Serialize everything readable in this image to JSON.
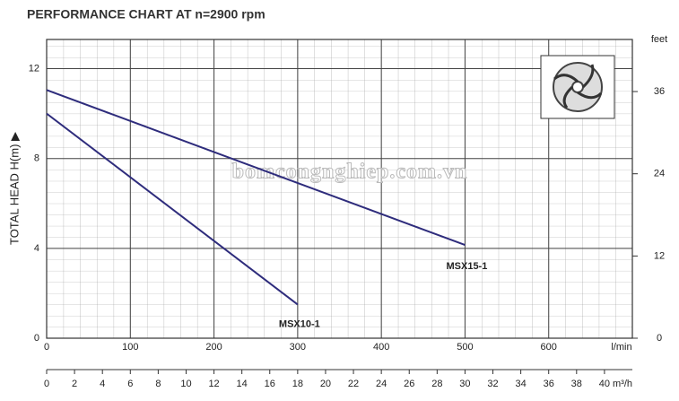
{
  "chart_data": {
    "type": "line",
    "title": "PERFORMANCE CHART AT n=2900 rpm",
    "y_label": "TOTAL HEAD H(m) ▶",
    "x_label": "l/min",
    "x2_label": "m³/h",
    "y2_label": "feet",
    "watermark": "bomcongnghiep.com.vn",
    "xlim": [
      0,
      700
    ],
    "xticks": [
      0,
      100,
      200,
      300,
      400,
      500,
      600
    ],
    "x2lim": [
      0,
      42
    ],
    "x2ticks": [
      0,
      2,
      4,
      6,
      8,
      10,
      12,
      14,
      16,
      18,
      20,
      22,
      24,
      26,
      28,
      30,
      32,
      34,
      36,
      38,
      40
    ],
    "ylim": [
      0,
      13.3
    ],
    "yticks": [
      0,
      4,
      8,
      12
    ],
    "y2lim": [
      0,
      43.6
    ],
    "y2ticks": [
      0,
      12,
      24,
      36
    ],
    "grid": true,
    "series": [
      {
        "name": "MSX15-1",
        "color": "#2e2c7c",
        "x": [
          0,
          500
        ],
        "values": [
          11.05,
          4.15
        ]
      },
      {
        "name": "MSX10-1",
        "color": "#2e2c7c",
        "x": [
          0,
          300
        ],
        "values": [
          10.0,
          1.5
        ]
      }
    ]
  }
}
